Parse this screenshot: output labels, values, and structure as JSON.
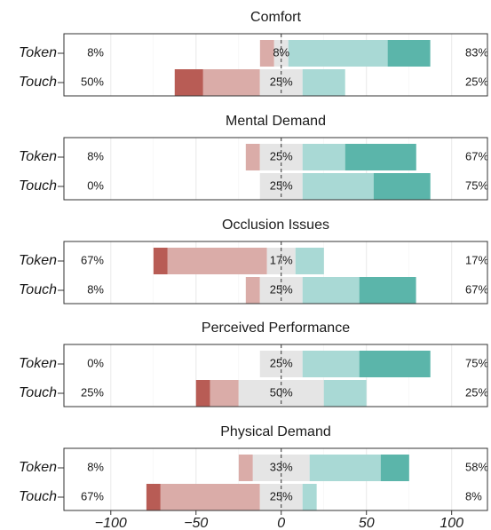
{
  "chart_data": {
    "type": "bar",
    "orientation": "horizontal",
    "xlim": [
      -127.5,
      121
    ],
    "xticks": [
      {
        "value": -100,
        "label": "−100"
      },
      {
        "value": -50,
        "label": "−50"
      },
      0,
      50,
      100
    ],
    "grid": true,
    "panels": [
      {
        "title": "Comfort",
        "categories": [
          "Token",
          "Touch"
        ],
        "series": [
          {
            "color": "#b85c55",
            "values": [
              0,
              16.7
            ]
          },
          {
            "color": "#daaca8",
            "values": [
              8.3,
              33.3
            ]
          },
          {
            "color": "#e5e5e5",
            "values": [
              8.3,
              25
            ]
          },
          {
            "color": "#a9d9d5",
            "values": [
              58.3,
              25
            ]
          },
          {
            "color": "#5bb5aa",
            "values": [
              25,
              0
            ]
          }
        ],
        "labels": [
          [
            "8%",
            "8%",
            "83%"
          ],
          [
            "50%",
            "25%",
            "25%"
          ]
        ]
      },
      {
        "title": "Mental Demand",
        "categories": [
          "Token",
          "Touch"
        ],
        "series": [
          {
            "color": "#b85c55",
            "values": [
              0,
              0
            ]
          },
          {
            "color": "#daaca8",
            "values": [
              8.3,
              0
            ]
          },
          {
            "color": "#e5e5e5",
            "values": [
              25,
              25
            ]
          },
          {
            "color": "#a9d9d5",
            "values": [
              25,
              41.7
            ]
          },
          {
            "color": "#5bb5aa",
            "values": [
              41.7,
              33.3
            ]
          }
        ],
        "labels": [
          [
            "8%",
            "25%",
            "67%"
          ],
          [
            "0%",
            "25%",
            "75%"
          ]
        ]
      },
      {
        "title": "Occlusion Issues",
        "categories": [
          "Token",
          "Touch"
        ],
        "series": [
          {
            "color": "#b85c55",
            "values": [
              8.3,
              0
            ]
          },
          {
            "color": "#daaca8",
            "values": [
              58.3,
              8.3
            ]
          },
          {
            "color": "#e5e5e5",
            "values": [
              16.7,
              25
            ]
          },
          {
            "color": "#a9d9d5",
            "values": [
              16.7,
              33.3
            ]
          },
          {
            "color": "#5bb5aa",
            "values": [
              0,
              33.3
            ]
          }
        ],
        "labels": [
          [
            "67%",
            "17%",
            "17%"
          ],
          [
            "8%",
            "25%",
            "67%"
          ]
        ]
      },
      {
        "title": "Perceived Performance",
        "categories": [
          "Token",
          "Touch"
        ],
        "series": [
          {
            "color": "#b85c55",
            "values": [
              0,
              8.3
            ]
          },
          {
            "color": "#daaca8",
            "values": [
              0,
              16.7
            ]
          },
          {
            "color": "#e5e5e5",
            "values": [
              25,
              50
            ]
          },
          {
            "color": "#a9d9d5",
            "values": [
              33.3,
              25
            ]
          },
          {
            "color": "#5bb5aa",
            "values": [
              41.7,
              0
            ]
          }
        ],
        "labels": [
          [
            "0%",
            "25%",
            "75%"
          ],
          [
            "25%",
            "50%",
            "25%"
          ]
        ]
      },
      {
        "title": "Physical Demand",
        "categories": [
          "Token",
          "Touch"
        ],
        "series": [
          {
            "color": "#b85c55",
            "values": [
              0,
              8.3
            ]
          },
          {
            "color": "#daaca8",
            "values": [
              8.3,
              58.3
            ]
          },
          {
            "color": "#e5e5e5",
            "values": [
              33.3,
              25
            ]
          },
          {
            "color": "#a9d9d5",
            "values": [
              41.7,
              8.3
            ]
          },
          {
            "color": "#5bb5aa",
            "values": [
              16.7,
              0
            ]
          }
        ],
        "labels": [
          [
            "8%",
            "33%",
            "58%"
          ],
          [
            "67%",
            "25%",
            "8%"
          ]
        ]
      }
    ]
  }
}
